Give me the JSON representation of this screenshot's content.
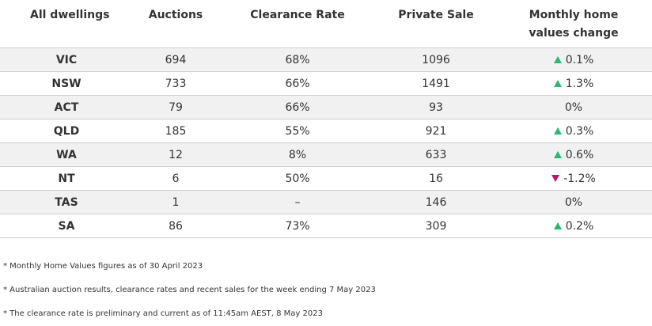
{
  "header": {
    "col0": "All dwellings",
    "col1": "Auctions",
    "col2": "Clearance Rate",
    "col3": "Private Sale",
    "col4_line1": "Monthly home",
    "col4_line2": "values change"
  },
  "rows": [
    {
      "state": "VIC",
      "auctions": "694",
      "clearance": "68%",
      "private": "1096",
      "change": "0.1%",
      "dir": "up"
    },
    {
      "state": "NSW",
      "auctions": "733",
      "clearance": "66%",
      "private": "1491",
      "change": "1.3%",
      "dir": "up"
    },
    {
      "state": "ACT",
      "auctions": "79",
      "clearance": "66%",
      "private": "93",
      "change": "0%",
      "dir": "none"
    },
    {
      "state": "QLD",
      "auctions": "185",
      "clearance": "55%",
      "private": "921",
      "change": "0.3%",
      "dir": "up"
    },
    {
      "state": "WA",
      "auctions": "12",
      "clearance": "8%",
      "private": "633",
      "change": "0.6%",
      "dir": "up"
    },
    {
      "state": "NT",
      "auctions": "6",
      "clearance": "50%",
      "private": "16",
      "change": "-1.2%",
      "dir": "down"
    },
    {
      "state": "TAS",
      "auctions": "1",
      "clearance": "–",
      "private": "146",
      "change": "0%",
      "dir": "none"
    },
    {
      "state": "SA",
      "auctions": "86",
      "clearance": "73%",
      "private": "309",
      "change": "0.2%",
      "dir": "up"
    }
  ],
  "icons": {
    "up": "triangle-up-icon",
    "down": "triangle-down-icon"
  },
  "colors": {
    "up": "#2bb673",
    "down": "#c0126d",
    "row_shade": "#f1f1f1"
  },
  "notes": [
    "* Monthly Home Values figures as of 30 April 2023",
    "* Australian auction results, clearance rates and recent sales for the week ending 7 May 2023",
    "* The clearance rate is preliminary and current as of 11:45am AEST, 8 May 2023"
  ]
}
